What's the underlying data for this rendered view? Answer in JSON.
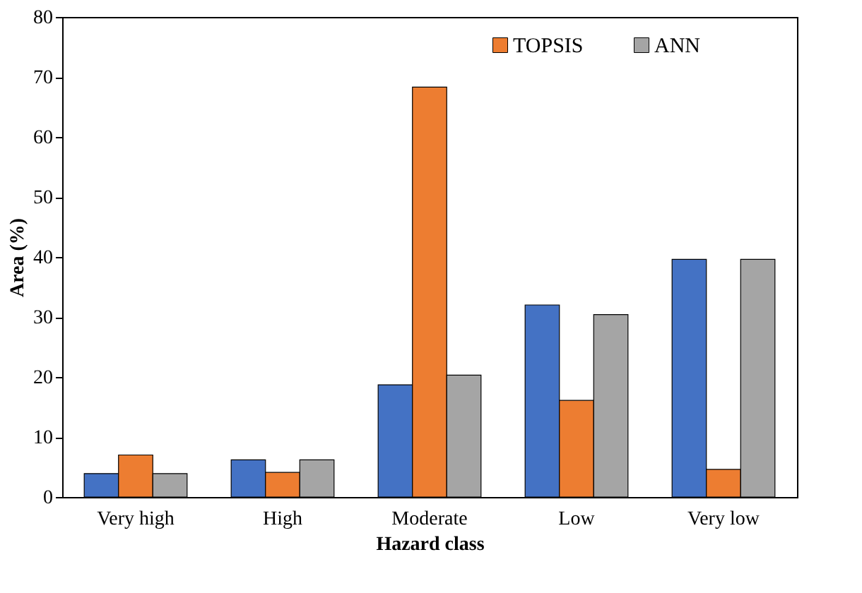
{
  "chart_data": {
    "type": "bar",
    "xlabel": "Hazard class",
    "ylabel": "Area (%)",
    "categories": [
      "Very high",
      "High",
      "Moderate",
      "Low",
      "Very low"
    ],
    "series": [
      {
        "color": "#4472c4",
        "values": [
          3.9,
          6.2,
          18.7,
          32.0,
          39.6
        ]
      },
      {
        "name": "TOPSIS",
        "color": "#ed7d31",
        "values": [
          7.0,
          4.1,
          68.3,
          16.1,
          4.6
        ]
      },
      {
        "name": "ANN",
        "color": "#a5a5a5",
        "values": [
          3.9,
          6.2,
          20.3,
          30.4,
          39.6
        ]
      }
    ],
    "ylim": [
      0,
      80
    ],
    "yticks": [
      0,
      10,
      20,
      30,
      40,
      50,
      60,
      70,
      80
    ],
    "grid": false,
    "legend": "top right"
  }
}
